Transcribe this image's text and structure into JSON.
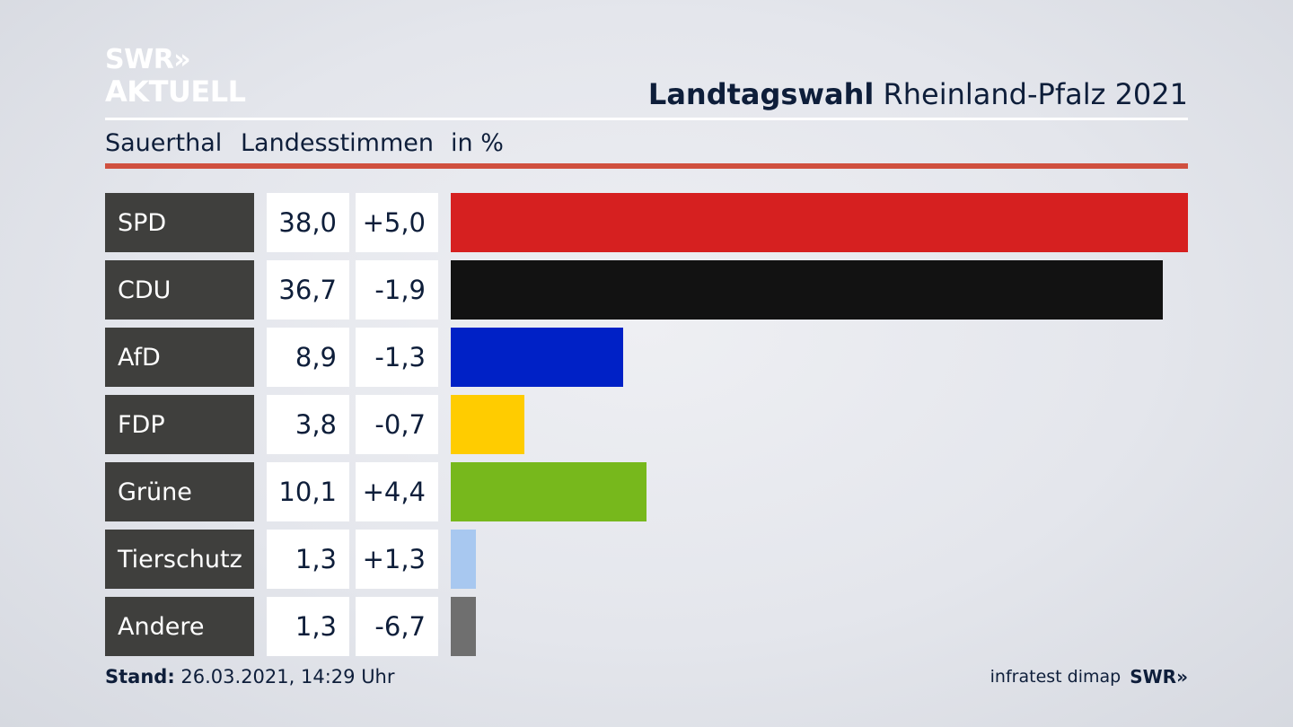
{
  "header": {
    "logo_line1": "SWR»",
    "logo_line2": "AKTUELL",
    "title_bold": "Landtagswahl",
    "title_rest": "Rheinland-Pfalz 2021",
    "subtitle_place": "Sauerthal",
    "subtitle_type": "Landesstimmen",
    "subtitle_unit": "in %"
  },
  "colors": {
    "accent_red": "#d0503f",
    "party_label_bg": "#3f3f3d"
  },
  "chart_data": {
    "type": "bar",
    "orientation": "horizontal",
    "unit": "%",
    "categories": [
      "SPD",
      "CDU",
      "AfD",
      "FDP",
      "Grüne",
      "Tierschutz",
      "Andere"
    ],
    "values": [
      38.0,
      36.7,
      8.9,
      3.8,
      10.1,
      1.3,
      1.3
    ],
    "value_labels": [
      "38,0",
      "36,7",
      "8,9",
      "3,8",
      "10,1",
      "1,3",
      "1,3"
    ],
    "changes": [
      5.0,
      -1.9,
      -1.3,
      -0.7,
      4.4,
      1.3,
      -6.7
    ],
    "change_labels": [
      "+5,0",
      "-1,9",
      "-1,3",
      "-0,7",
      "+4,4",
      "+1,3",
      "-6,7"
    ],
    "colors": [
      "#d62020",
      "#121212",
      "#0021c6",
      "#ffcc00",
      "#77b81c",
      "#a8c8f0",
      "#6f6f6f"
    ],
    "xlim": [
      0,
      38.0
    ]
  },
  "footer": {
    "stand_label": "Stand:",
    "stand_value": "26.03.2021, 14:29 Uhr",
    "source": "infratest dimap",
    "brand": "SWR»"
  }
}
